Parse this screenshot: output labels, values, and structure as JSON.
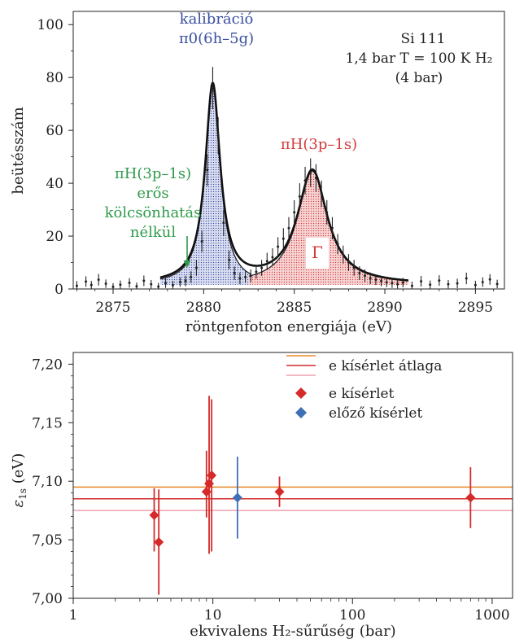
{
  "chart_data": [
    {
      "type": "line",
      "xlabel": "röntgenfoton energiája (eV)",
      "ylabel": "beütésszám",
      "xlim": [
        2872.8,
        2896.6
      ],
      "ylim": [
        0,
        105
      ],
      "xticks": [
        2875,
        2880,
        2885,
        2890,
        2895
      ],
      "yticks": [
        0,
        20,
        40,
        60,
        80,
        100
      ],
      "annotations": {
        "calibration": [
          "kalibráció",
          "π0(6h–5g)"
        ],
        "setup": [
          "Si 111",
          "1,4 bar  T = 100 K  H₂",
          "(4 bar)"
        ],
        "pih": "πH(3p–1s)",
        "nostrong": [
          "πH(3p–1s)",
          "erős",
          "kölcsönhatás",
          "nélkül"
        ],
        "gamma": "Γ"
      },
      "peaks": [
        {
          "name": "π0(6h–5g)",
          "center": 2880.5,
          "height": 75,
          "width": 0.5,
          "range": [
            2877.6,
            2882.6
          ],
          "color": "#3a4fa0"
        },
        {
          "name": "πH(3p–1s)",
          "center": 2886.0,
          "height": 43,
          "width": 1.0,
          "range": [
            2882.5,
            2891.3
          ],
          "color": "#d43a3a"
        }
      ],
      "data_points": [
        [
          2873.0,
          1.2,
          1.8
        ],
        [
          2873.5,
          2.8,
          2.0
        ],
        [
          2873.8,
          1.5,
          1.5
        ],
        [
          2874.2,
          3.5,
          2.2
        ],
        [
          2874.6,
          2.0,
          1.6
        ],
        [
          2875.0,
          0.8,
          1.4
        ],
        [
          2875.4,
          1.6,
          1.6
        ],
        [
          2875.9,
          2.3,
          1.8
        ],
        [
          2876.3,
          1.0,
          1.4
        ],
        [
          2876.7,
          3.1,
          2.0
        ],
        [
          2877.1,
          1.8,
          1.6
        ],
        [
          2877.5,
          0.9,
          1.4
        ],
        [
          2877.9,
          2.2,
          1.8
        ],
        [
          2878.3,
          1.4,
          1.6
        ],
        [
          2878.7,
          2.6,
          1.8
        ],
        [
          2879.0,
          3.0,
          2.0
        ],
        [
          2879.3,
          4.5,
          2.2
        ],
        [
          2879.6,
          8.0,
          3.0
        ],
        [
          2879.9,
          18.0,
          4.0
        ],
        [
          2880.2,
          45.0,
          6.0
        ],
        [
          2880.5,
          76.0,
          8.0
        ],
        [
          2880.8,
          58.0,
          7.0
        ],
        [
          2881.1,
          25.0,
          5.0
        ],
        [
          2881.4,
          11.0,
          3.5
        ],
        [
          2881.7,
          6.0,
          2.5
        ],
        [
          2882.0,
          4.0,
          2.2
        ],
        [
          2882.3,
          4.5,
          2.2
        ],
        [
          2882.6,
          5.0,
          2.4
        ],
        [
          2882.9,
          6.5,
          2.6
        ],
        [
          2883.2,
          8.0,
          3.0
        ],
        [
          2883.5,
          10.5,
          3.2
        ],
        [
          2883.8,
          12.0,
          3.4
        ],
        [
          2884.1,
          16.0,
          3.6
        ],
        [
          2884.4,
          19.0,
          4.0
        ],
        [
          2884.7,
          23.0,
          4.2
        ],
        [
          2885.0,
          29.0,
          4.6
        ],
        [
          2885.3,
          35.0,
          5.0
        ],
        [
          2885.6,
          41.0,
          5.2
        ],
        [
          2885.9,
          44.0,
          5.4
        ],
        [
          2886.2,
          42.0,
          5.2
        ],
        [
          2886.5,
          36.0,
          5.0
        ],
        [
          2886.8,
          29.0,
          4.6
        ],
        [
          2887.1,
          23.0,
          4.2
        ],
        [
          2887.4,
          17.0,
          3.8
        ],
        [
          2887.7,
          13.0,
          3.4
        ],
        [
          2888.0,
          10.0,
          3.2
        ],
        [
          2888.3,
          8.0,
          3.0
        ],
        [
          2888.6,
          6.0,
          2.6
        ],
        [
          2888.9,
          5.0,
          2.4
        ],
        [
          2889.2,
          4.0,
          2.2
        ],
        [
          2889.5,
          3.5,
          2.0
        ],
        [
          2889.8,
          3.0,
          2.0
        ],
        [
          2890.1,
          2.5,
          1.8
        ],
        [
          2890.4,
          2.2,
          1.8
        ],
        [
          2890.7,
          1.8,
          1.6
        ],
        [
          2891.0,
          2.4,
          1.8
        ],
        [
          2891.5,
          1.2,
          1.6
        ],
        [
          2892.0,
          2.9,
          2.0
        ],
        [
          2892.5,
          1.6,
          1.6
        ],
        [
          2893.0,
          3.2,
          2.0
        ],
        [
          2893.5,
          1.8,
          1.6
        ],
        [
          2894.0,
          2.1,
          1.8
        ],
        [
          2894.5,
          4.0,
          2.2
        ],
        [
          2895.0,
          1.5,
          1.6
        ],
        [
          2895.4,
          2.6,
          1.8
        ],
        [
          2895.8,
          3.6,
          2.0
        ],
        [
          2896.2,
          1.9,
          1.6
        ]
      ]
    },
    {
      "type": "scatter",
      "xscale": "log",
      "xlabel": "ekvivalens H₂-sűrűség (bar)",
      "ylabel": "ε1s (eV)",
      "ylabel_main": "ε",
      "ylabel_sub": "1s",
      "ylabel_unit": " (eV)",
      "xlim": [
        1,
        1400
      ],
      "ylim": [
        7.0,
        7.21
      ],
      "xticks": [
        1,
        10,
        100,
        1000
      ],
      "xticklabels": [
        "1",
        "10",
        "100",
        "1000"
      ],
      "yticks": [
        7.0,
        7.05,
        7.1,
        7.15,
        7.2
      ],
      "yticklabels": [
        "7,00",
        "7,05",
        "7,10",
        "7,15",
        "7,20"
      ],
      "average_lines": [
        {
          "value": 7.095,
          "color": "#e8882a"
        },
        {
          "value": 7.085,
          "color": "#d42a2a"
        },
        {
          "value": 7.075,
          "color": "#f0a0b0"
        }
      ],
      "series": [
        {
          "name": "e kísérlet",
          "color": "#d42a2a",
          "points": [
            {
              "x": 3.8,
              "y": 7.071,
              "yerr_low": 0.031,
              "yerr_high": 0.023
            },
            {
              "x": 4.1,
              "y": 7.048,
              "yerr_low": 0.045,
              "yerr_high": 0.045
            },
            {
              "x": 9.0,
              "y": 7.091,
              "yerr_low": 0.022,
              "yerr_high": 0.035
            },
            {
              "x": 9.4,
              "y": 7.098,
              "yerr_low": 0.06,
              "yerr_high": 0.075
            },
            {
              "x": 9.8,
              "y": 7.105,
              "yerr_low": 0.065,
              "yerr_high": 0.065
            },
            {
              "x": 30,
              "y": 7.091,
              "yerr_low": 0.013,
              "yerr_high": 0.013
            },
            {
              "x": 700,
              "y": 7.086,
              "yerr_low": 0.026,
              "yerr_high": 0.026
            }
          ]
        },
        {
          "name": "előző kísérlet",
          "color": "#3f6fb5",
          "points": [
            {
              "x": 15,
              "y": 7.086,
              "yerr_low": 0.035,
              "yerr_high": 0.035
            }
          ]
        }
      ],
      "legend": {
        "line_label": "e kísérlet átlaga",
        "items": [
          "e kísérlet",
          "előző kísérlet"
        ]
      }
    }
  ]
}
